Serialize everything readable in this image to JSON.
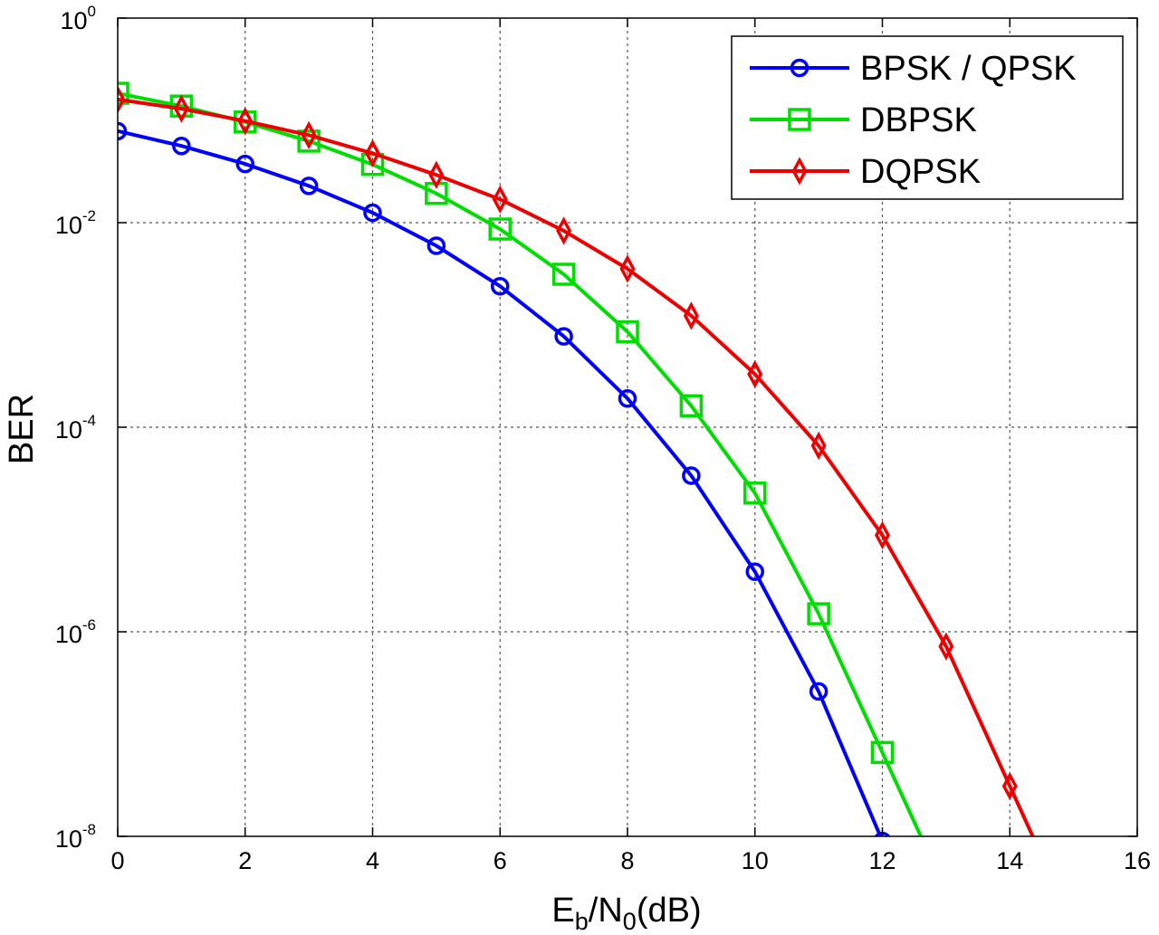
{
  "chart_data": {
    "type": "line",
    "y_scale": "log",
    "grid": true,
    "legend_position": "top-right",
    "xlabel": {
      "main": "E",
      "sub1": "b",
      "mid": "/N",
      "sub2": "0",
      "tail": "(dB)"
    },
    "ylabel": "BER",
    "xlim": [
      0,
      16
    ],
    "ylim": [
      1e-08,
      1
    ],
    "x_ticks": [
      "0",
      "2",
      "4",
      "6",
      "8",
      "10",
      "12",
      "14",
      "16"
    ],
    "y_ticks": [
      {
        "base": "10",
        "exp": "0"
      },
      {
        "base": "10",
        "exp": "-2"
      },
      {
        "base": "10",
        "exp": "-4"
      },
      {
        "base": "10",
        "exp": "-6"
      },
      {
        "base": "10",
        "exp": "-8"
      }
    ],
    "series": [
      {
        "name": "BPSK / QPSK",
        "color": "#0000ff",
        "marker": "circle",
        "x": [
          0,
          1,
          2,
          3,
          4,
          5,
          6,
          7,
          8,
          9,
          10,
          11,
          12
        ],
        "y": [
          0.0786,
          0.0563,
          0.0375,
          0.0229,
          0.0125,
          0.00595,
          0.00239,
          0.000773,
          0.000191,
          3.36e-05,
          3.87e-06,
          2.61e-07,
          9.01e-09
        ]
      },
      {
        "name": "DBPSK",
        "color": "#00dd00",
        "marker": "square",
        "x": [
          0,
          1,
          2,
          3,
          4,
          5,
          6,
          7,
          8,
          9,
          10,
          11,
          12
        ],
        "y": [
          0.184,
          0.138,
          0.0964,
          0.0627,
          0.0371,
          0.0193,
          0.00866,
          0.00313,
          0.000858,
          0.000162,
          2.27e-05,
          1.5e-06,
          6.6e-08
        ]
      },
      {
        "name": "DQPSK",
        "color": "#ee0000",
        "marker": "diamond",
        "x": [
          0,
          1,
          2,
          3,
          4,
          5,
          6,
          7,
          8,
          9,
          10,
          11,
          12,
          13,
          14
        ],
        "y": [
          0.16,
          0.13,
          0.0985,
          0.0717,
          0.0476,
          0.0293,
          0.0169,
          0.00834,
          0.00354,
          0.00123,
          0.00033,
          6.6e-05,
          8.8e-06,
          7.2e-07,
          3.1e-08
        ]
      }
    ]
  }
}
